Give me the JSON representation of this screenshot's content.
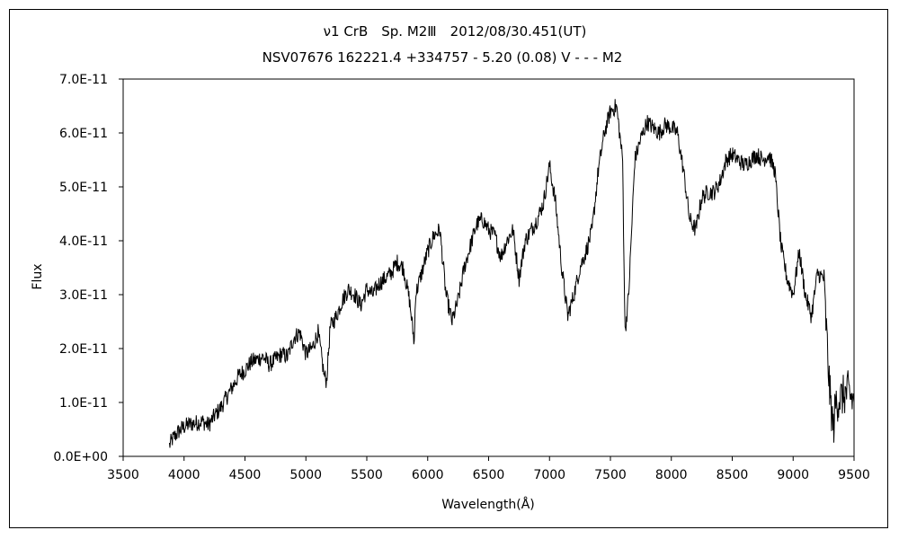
{
  "chart_data": {
    "type": "line",
    "title": "ν1 CrB　Sp. M2Ⅲ　2012/08/30.451(UT)",
    "subtitle": "NSV07676 162221.4 +334757 - 5.20 (0.08) V - - - M2",
    "xlabel": "Wavelength(Å)",
    "ylabel": "Flux",
    "xlim": [
      3500,
      9500
    ],
    "ylim": [
      0,
      7e-11
    ],
    "x_ticks": [
      "3500",
      "4000",
      "4500",
      "5000",
      "5500",
      "6000",
      "6500",
      "7000",
      "7500",
      "8000",
      "8500",
      "9000",
      "9500"
    ],
    "y_ticks": [
      "0.0E+00",
      "1.0E-11",
      "2.0E-11",
      "3.0E-11",
      "4.0E-11",
      "5.0E-11",
      "6.0E-11",
      "7.0E-11"
    ],
    "grid": false,
    "legend": "none",
    "line_color": "#000000",
    "series": [
      {
        "x": [
          3880,
          3900,
          3950,
          4000,
          4050,
          4100,
          4150,
          4200,
          4250,
          4300,
          4350,
          4400,
          4450,
          4500,
          4550,
          4600,
          4650,
          4700,
          4750,
          4800,
          4850,
          4900,
          4950,
          5000,
          5050,
          5100,
          5150,
          5170,
          5200,
          5250,
          5300,
          5350,
          5400,
          5450,
          5500,
          5550,
          5600,
          5650,
          5700,
          5750,
          5800,
          5850,
          5890,
          5900,
          5950,
          6000,
          6050,
          6100,
          6150,
          6200,
          6250,
          6300,
          6350,
          6400,
          6450,
          6500,
          6550,
          6600,
          6650,
          6700,
          6750,
          6800,
          6850,
          6900,
          6950,
          7000,
          7050,
          7100,
          7150,
          7200,
          7250,
          7300,
          7350,
          7400,
          7450,
          7500,
          7550,
          7600,
          7620,
          7650,
          7700,
          7750,
          7800,
          7850,
          7900,
          7950,
          8000,
          8050,
          8100,
          8150,
          8200,
          8250,
          8300,
          8350,
          8400,
          8450,
          8500,
          8550,
          8600,
          8650,
          8700,
          8750,
          8800,
          8850,
          8900,
          8950,
          9000,
          9050,
          9100,
          9150,
          9200,
          9250,
          9300,
          9330,
          9350,
          9400,
          9450,
          9500
        ],
        "values": [
          2e-12,
          3e-12,
          4.5e-12,
          5.5e-12,
          6e-12,
          6.2e-12,
          6.5e-12,
          5.8e-12,
          7.5e-12,
          9e-12,
          1.1e-11,
          1.3e-11,
          1.5e-11,
          1.6e-11,
          1.75e-11,
          1.8e-11,
          1.85e-11,
          1.7e-11,
          1.8e-11,
          1.9e-11,
          1.85e-11,
          2.2e-11,
          2.3e-11,
          1.9e-11,
          2e-11,
          2.3e-11,
          1.5e-11,
          1.4e-11,
          2.4e-11,
          2.6e-11,
          2.9e-11,
          3.1e-11,
          3e-11,
          2.8e-11,
          3.1e-11,
          3e-11,
          3.2e-11,
          3.3e-11,
          3.4e-11,
          3.6e-11,
          3.5e-11,
          2.9e-11,
          2.1e-11,
          3e-11,
          3.4e-11,
          3.8e-11,
          4.1e-11,
          4.2e-11,
          3e-11,
          2.5e-11,
          2.9e-11,
          3.5e-11,
          3.9e-11,
          4.3e-11,
          4.4e-11,
          4.2e-11,
          4.1e-11,
          3.7e-11,
          4e-11,
          4.2e-11,
          3.3e-11,
          4e-11,
          4.2e-11,
          4.4e-11,
          4.7e-11,
          5.4e-11,
          4.7e-11,
          3.5e-11,
          2.6e-11,
          3e-11,
          3.5e-11,
          3.8e-11,
          4.2e-11,
          5.3e-11,
          6e-11,
          6.4e-11,
          6.5e-11,
          5.5e-11,
          2.3e-11,
          3e-11,
          5.5e-11,
          5.9e-11,
          6.2e-11,
          6.1e-11,
          6e-11,
          6.15e-11,
          6.1e-11,
          6e-11,
          5.3e-11,
          4.4e-11,
          4.2e-11,
          4.8e-11,
          4.9e-11,
          4.9e-11,
          5.1e-11,
          5.5e-11,
          5.6e-11,
          5.5e-11,
          5.4e-11,
          5.5e-11,
          5.6e-11,
          5.5e-11,
          5.6e-11,
          5.3e-11,
          3.9e-11,
          3.3e-11,
          3e-11,
          3.8e-11,
          3e-11,
          2.6e-11,
          3.4e-11,
          3.3e-11,
          1.2e-11,
          5e-12,
          1e-11,
          1.1e-11,
          1.2e-11,
          1e-11
        ]
      }
    ]
  }
}
